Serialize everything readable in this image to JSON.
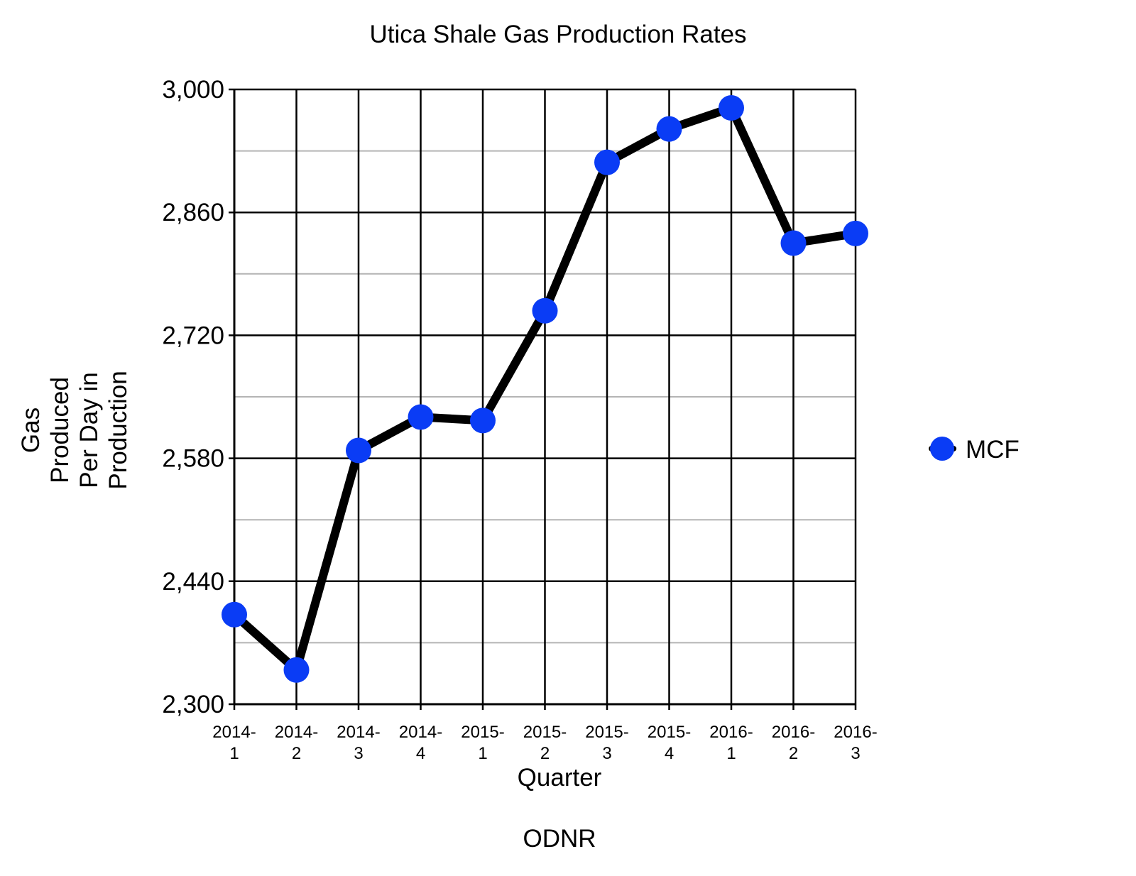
{
  "chart_data": {
    "type": "line",
    "title": "Utica Shale Gas Production Rates",
    "xlabel": "Quarter",
    "ylabel": "Gas Produced Per Day in Production",
    "ylabel_lines": [
      "Gas",
      "Produced",
      "Per Day in",
      "Production"
    ],
    "source": "ODNR",
    "categories": [
      "2014-1",
      "2014-2",
      "2014-3",
      "2014-4",
      "2015-1",
      "2015-2",
      "2015-3",
      "2015-4",
      "2016-1",
      "2016-2",
      "2016-3"
    ],
    "category_lines": [
      [
        "2014-",
        "1"
      ],
      [
        "2014-",
        "2"
      ],
      [
        "2014-",
        "3"
      ],
      [
        "2014-",
        "4"
      ],
      [
        "2015-",
        "1"
      ],
      [
        "2015-",
        "2"
      ],
      [
        "2015-",
        "3"
      ],
      [
        "2015-",
        "4"
      ],
      [
        "2016-",
        "1"
      ],
      [
        "2016-",
        "2"
      ],
      [
        "2016-",
        "3"
      ]
    ],
    "series": [
      {
        "name": "MCF",
        "values": [
          2402,
          2339,
          2589,
          2627,
          2623,
          2748,
          2917,
          2955,
          2979,
          2825,
          2836
        ]
      }
    ],
    "ylim": [
      2300,
      3000
    ],
    "yticks": [
      2300,
      2440,
      2580,
      2720,
      2860,
      3000
    ],
    "ytick_labels": [
      "2,300",
      "2,440",
      "2,580",
      "2,720",
      "2,860",
      "3,000"
    ],
    "grid": true,
    "legend": "right",
    "colors": {
      "line": "#000000",
      "marker": "#0a3cf5",
      "major_grid": "#000000",
      "minor_grid": "#b4b4b4"
    }
  }
}
